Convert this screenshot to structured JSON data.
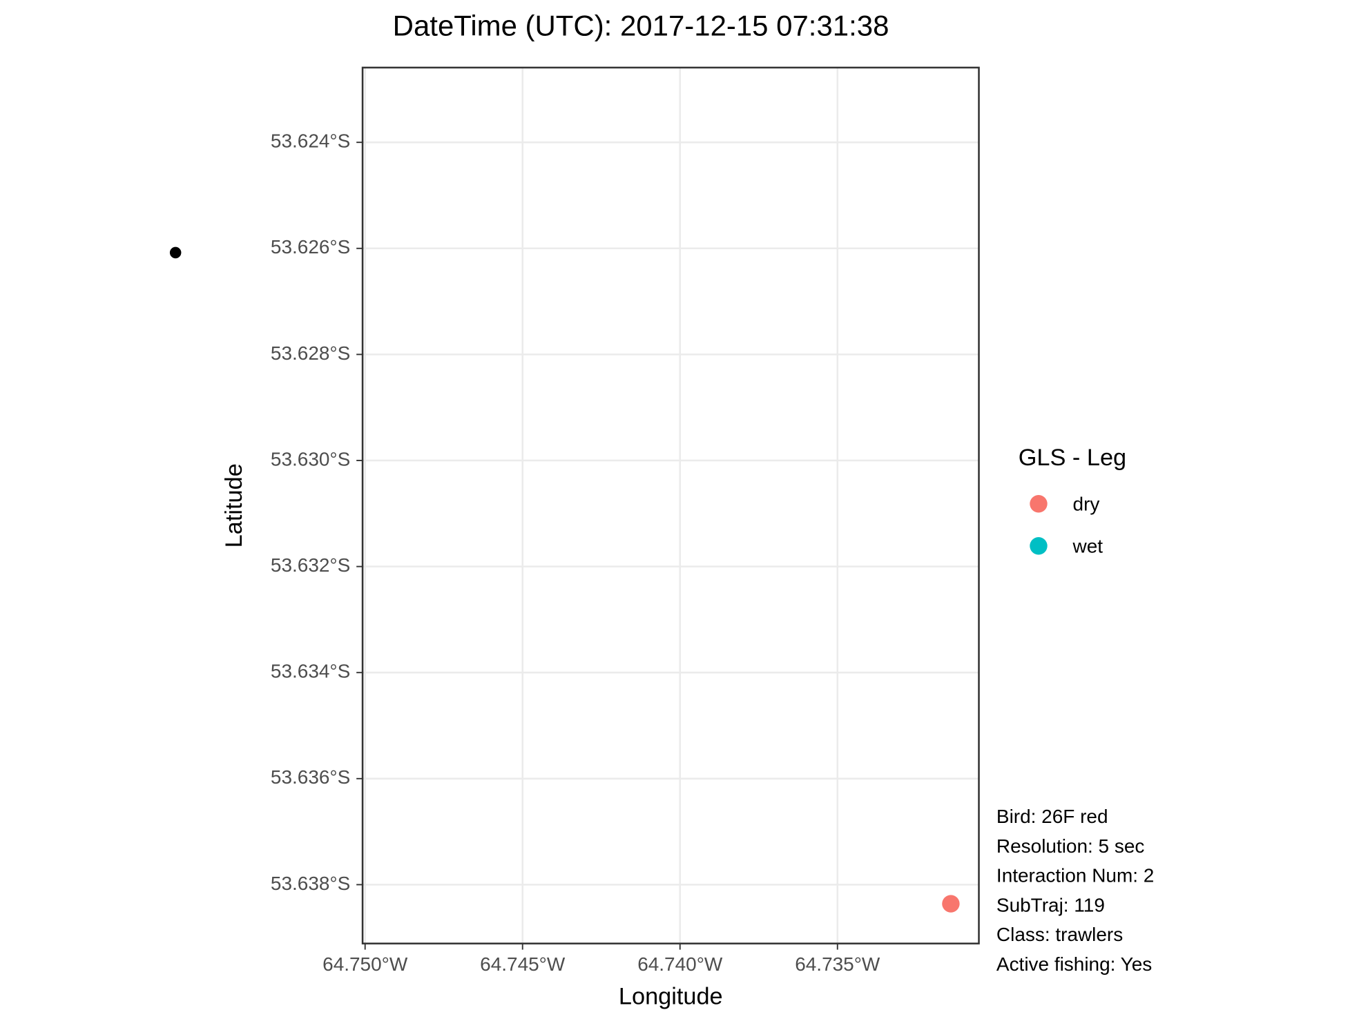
{
  "chart_data": {
    "type": "scatter",
    "title": "DateTime (UTC): 2017-12-15 07:31:38",
    "x_label": "Longitude",
    "y_label": "Latitude",
    "xlim": [
      -64.75008,
      -64.73051
    ],
    "ylim": [
      -53.63911,
      -53.62259
    ],
    "xticks": [
      {
        "value": -64.75,
        "label": "64.750°W"
      },
      {
        "value": -64.745,
        "label": "64.745°W"
      },
      {
        "value": -64.74,
        "label": "64.740°W"
      },
      {
        "value": -64.735,
        "label": "64.735°W"
      }
    ],
    "yticks": [
      {
        "value": -53.624,
        "label": "53.624°S"
      },
      {
        "value": -53.626,
        "label": "53.626°S"
      },
      {
        "value": -53.628,
        "label": "53.628°S"
      },
      {
        "value": -53.63,
        "label": "53.630°S"
      },
      {
        "value": -53.632,
        "label": "53.632°S"
      },
      {
        "value": -53.634,
        "label": "53.634°S"
      },
      {
        "value": -53.636,
        "label": "53.636°S"
      },
      {
        "value": -53.638,
        "label": "53.638°S"
      }
    ],
    "grid": true,
    "legend_title": "GLS - Leg",
    "series": [
      {
        "name": "dry",
        "color": "#F8766D",
        "x": [
          -64.7314
        ],
        "values": [
          -53.63836
        ]
      },
      {
        "name": "wet",
        "color": "#00BFC4",
        "x": [],
        "values": []
      }
    ],
    "marker": {
      "x": -64.75602,
      "y": -53.62608,
      "color": "#000000"
    },
    "annotations": [
      "Bird: 26F red",
      "Resolution: 5 sec",
      "Interaction Num: 2",
      "SubTraj: 119",
      "Class: trawlers",
      "Active fishing: Yes"
    ]
  }
}
